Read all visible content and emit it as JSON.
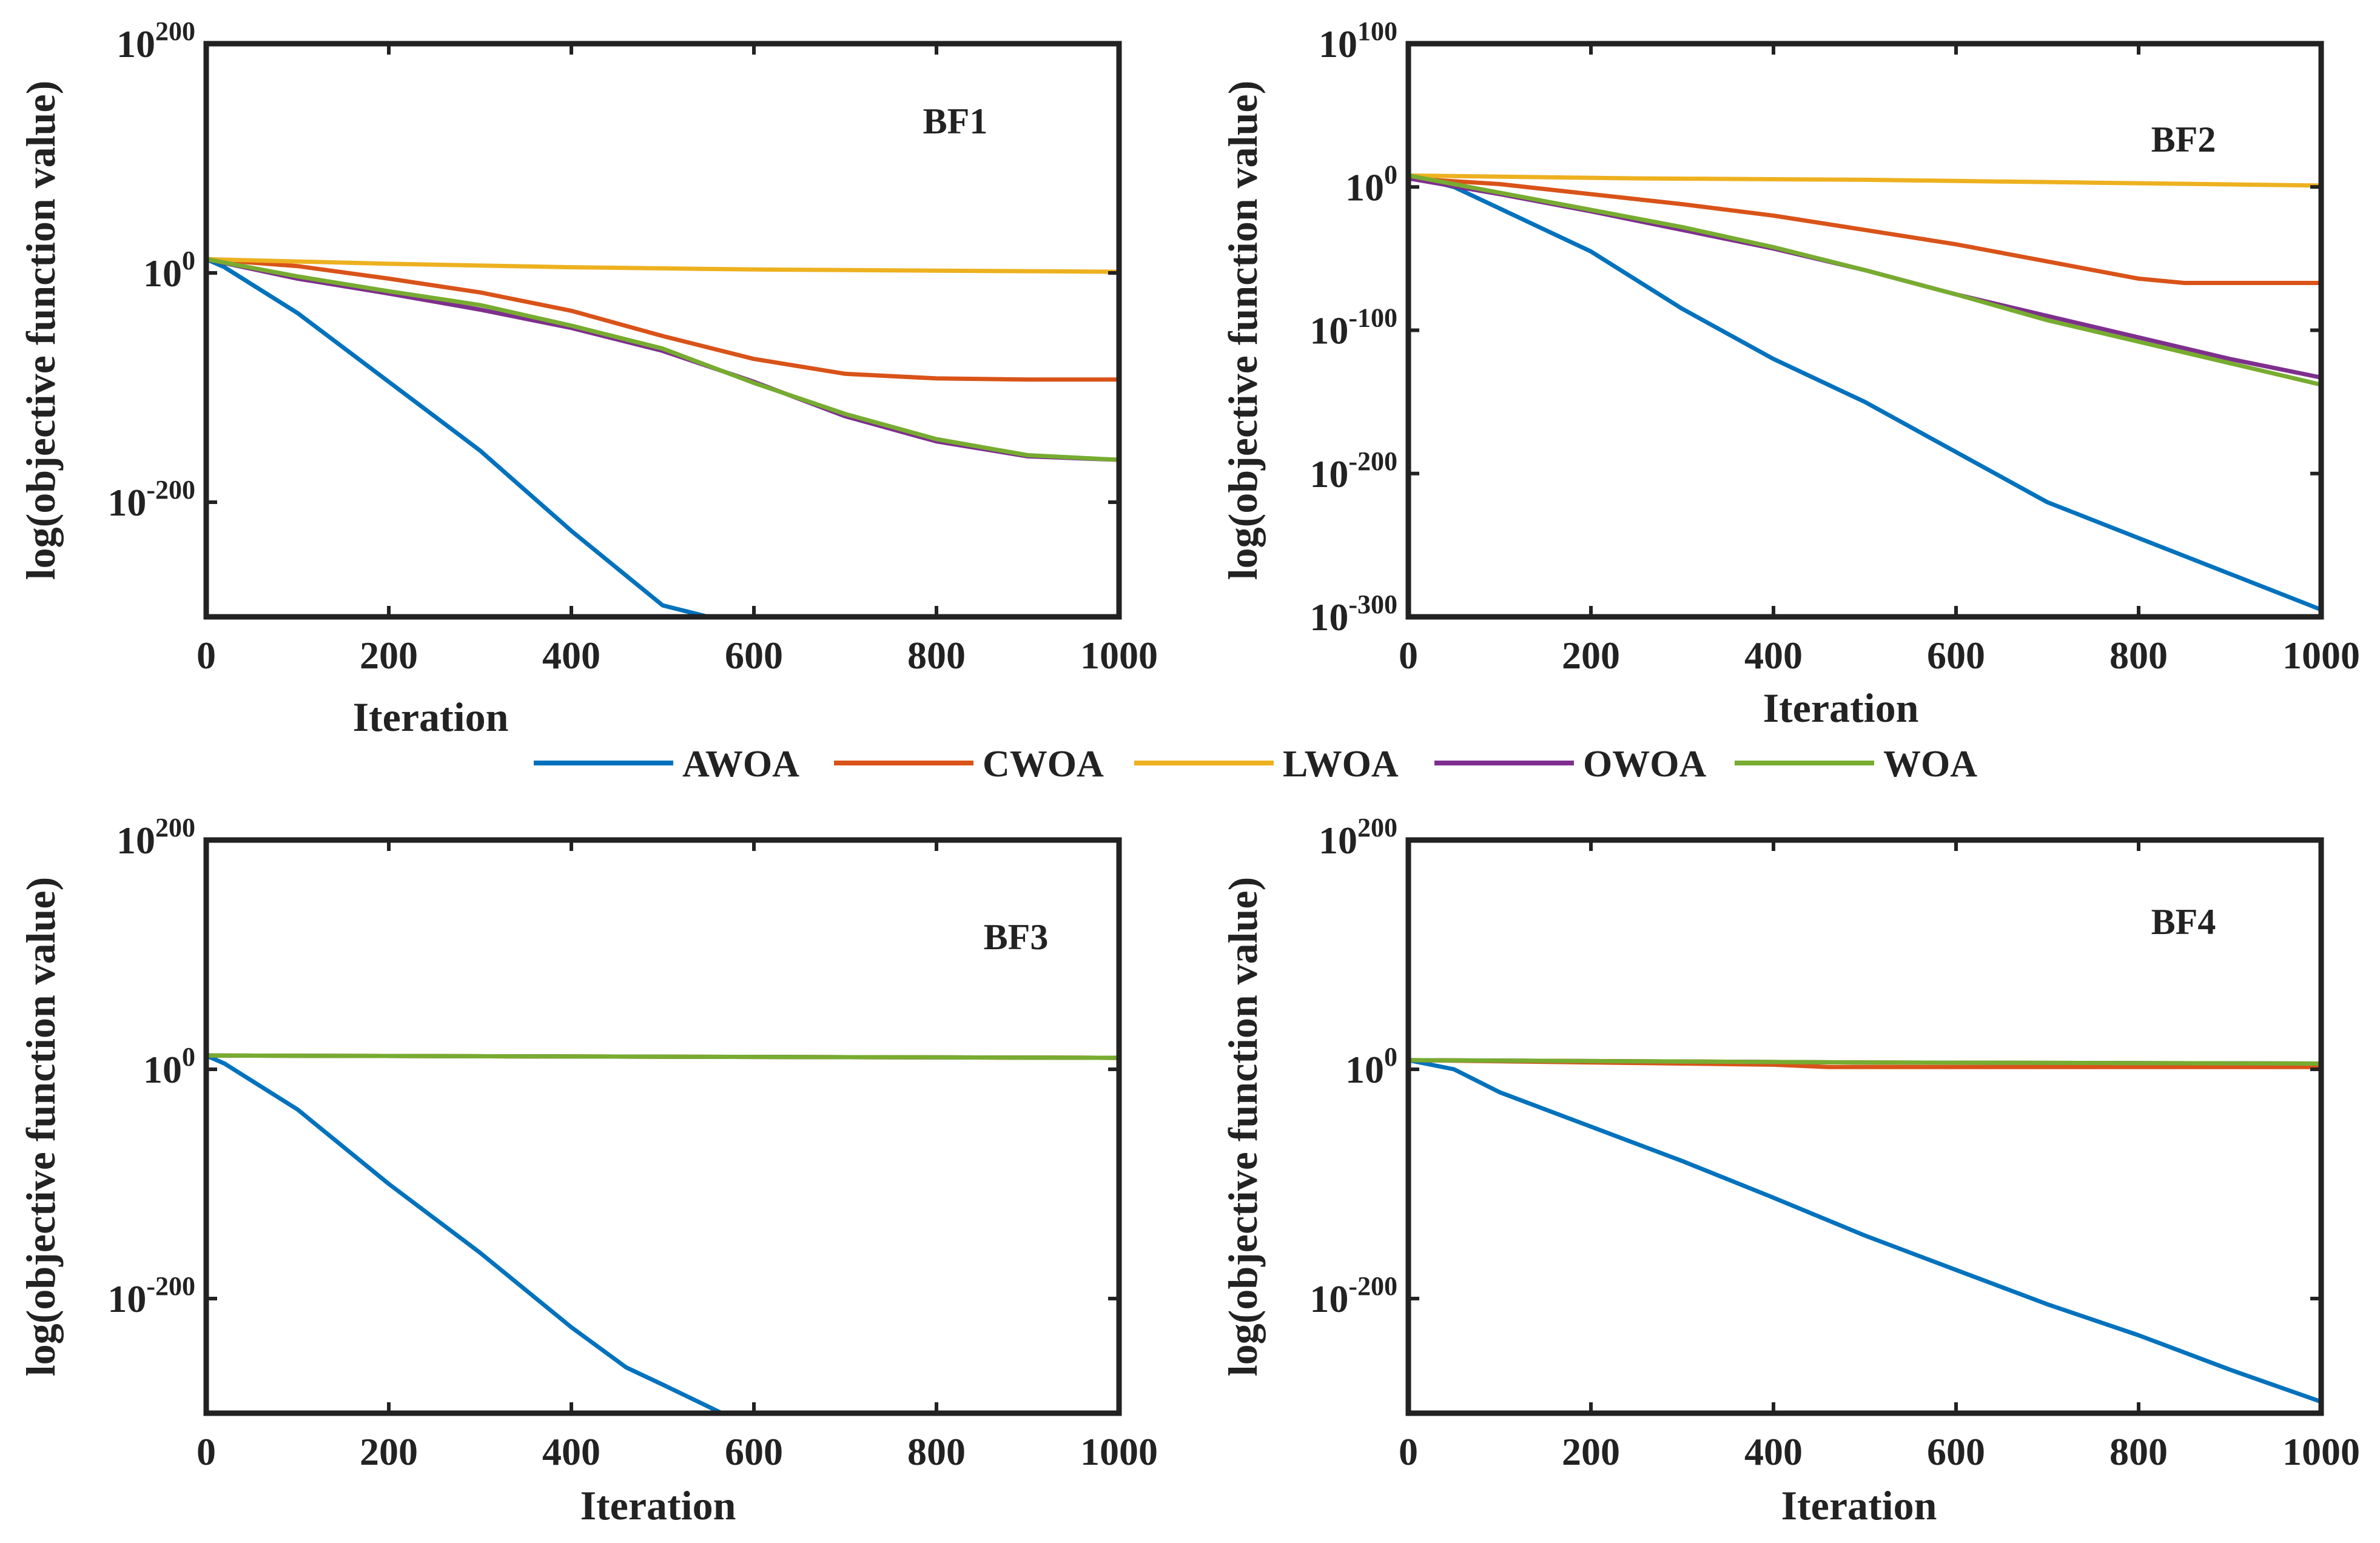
{
  "figure": {
    "legend": [
      "AWOA",
      "CWOA",
      "LWOA",
      "OWOA",
      "WOA"
    ],
    "colors": {
      "AWOA": "#0072BD",
      "CWOA": "#D95319",
      "LWOA": "#EDB120",
      "OWOA": "#7E2F8E",
      "WOA": "#77AC30",
      "axis": "#222222"
    }
  },
  "chart_data": [
    {
      "id": "BF1",
      "type": "line",
      "title": "BF1",
      "xlabel": "Iteration",
      "ylabel": "log(objective function value)",
      "yscale": "log",
      "xlim": [
        0,
        1000
      ],
      "ylim_exp": [
        -300,
        200
      ],
      "xticks": [
        "0",
        "200",
        "400",
        "600",
        "800",
        "1000"
      ],
      "yticks": [
        {
          "base": "10",
          "exp": "200"
        },
        {
          "base": "10",
          "exp": "0"
        },
        {
          "base": "10",
          "exp": "-200"
        }
      ],
      "yticks_exp": [
        200,
        0,
        -200
      ],
      "series": [
        {
          "name": "AWOA",
          "x": [
            0,
            20,
            100,
            200,
            300,
            400,
            500,
            550
          ],
          "log10_y": [
            12,
            5,
            -35,
            -95,
            -155,
            -225,
            -290,
            -300
          ]
        },
        {
          "name": "CWOA",
          "x": [
            0,
            100,
            200,
            300,
            400,
            500,
            600,
            700,
            800,
            900,
            1000
          ],
          "log10_y": [
            12,
            6,
            -5,
            -17,
            -33,
            -55,
            -75,
            -88,
            -92,
            -93,
            -93
          ]
        },
        {
          "name": "LWOA",
          "x": [
            0,
            200,
            400,
            600,
            800,
            1000
          ],
          "log10_y": [
            12,
            8,
            5,
            3,
            2,
            1
          ]
        },
        {
          "name": "OWOA",
          "x": [
            0,
            100,
            200,
            300,
            400,
            500,
            600,
            700,
            800,
            900,
            1000
          ],
          "log10_y": [
            12,
            -5,
            -18,
            -32,
            -48,
            -68,
            -95,
            -125,
            -147,
            -160,
            -163
          ]
        },
        {
          "name": "WOA",
          "x": [
            0,
            100,
            200,
            300,
            400,
            500,
            600,
            700,
            800,
            900,
            1000
          ],
          "log10_y": [
            12,
            -3,
            -16,
            -28,
            -46,
            -66,
            -96,
            -123,
            -145,
            -159,
            -163
          ]
        }
      ]
    },
    {
      "id": "BF2",
      "type": "line",
      "title": "BF2",
      "xlabel": "Iteration",
      "ylabel": "log(objective function value)",
      "yscale": "log",
      "xlim": [
        0,
        1000
      ],
      "ylim_exp": [
        -300,
        100
      ],
      "xticks": [
        "0",
        "200",
        "400",
        "600",
        "800",
        "1000"
      ],
      "yticks": [
        {
          "base": "10",
          "exp": "100"
        },
        {
          "base": "10",
          "exp": "0"
        },
        {
          "base": "10",
          "exp": "-100"
        },
        {
          "base": "10",
          "exp": "-200"
        },
        {
          "base": "10",
          "exp": "-300"
        }
      ],
      "yticks_exp": [
        100,
        0,
        -100,
        -200,
        -300
      ],
      "series": [
        {
          "name": "AWOA",
          "x": [
            0,
            50,
            100,
            200,
            300,
            400,
            500,
            600,
            700,
            800,
            900,
            1000
          ],
          "log10_y": [
            8,
            0,
            -15,
            -45,
            -85,
            -120,
            -150,
            -185,
            -220,
            -245,
            -270,
            -295
          ]
        },
        {
          "name": "CWOA",
          "x": [
            0,
            100,
            200,
            300,
            400,
            500,
            600,
            700,
            800,
            850,
            900,
            1000
          ],
          "log10_y": [
            6,
            2,
            -5,
            -12,
            -20,
            -30,
            -40,
            -52,
            -64,
            -67,
            -67,
            -67
          ]
        },
        {
          "name": "LWOA",
          "x": [
            0,
            250,
            500,
            750,
            1000
          ],
          "log10_y": [
            8,
            6,
            5,
            3,
            1
          ]
        },
        {
          "name": "OWOA",
          "x": [
            0,
            100,
            200,
            300,
            400,
            500,
            600,
            700,
            800,
            900,
            1000
          ],
          "log10_y": [
            6,
            -5,
            -17,
            -30,
            -43,
            -58,
            -75,
            -90,
            -105,
            -120,
            -133
          ]
        },
        {
          "name": "WOA",
          "x": [
            0,
            100,
            200,
            300,
            400,
            500,
            600,
            700,
            800,
            900,
            1000
          ],
          "log10_y": [
            8,
            -4,
            -16,
            -28,
            -42,
            -58,
            -75,
            -93,
            -108,
            -123,
            -138
          ]
        }
      ]
    },
    {
      "id": "BF3",
      "type": "line",
      "title": "BF3",
      "xlabel": "Iteration",
      "ylabel": "log(objective function value)",
      "yscale": "log",
      "xlim": [
        0,
        1000
      ],
      "ylim_exp": [
        -300,
        200
      ],
      "xticks": [
        "0",
        "200",
        "400",
        "600",
        "800",
        "1000"
      ],
      "yticks": [
        {
          "base": "10",
          "exp": "200"
        },
        {
          "base": "10",
          "exp": "0"
        },
        {
          "base": "10",
          "exp": "-200"
        }
      ],
      "yticks_exp": [
        200,
        0,
        -200
      ],
      "series": [
        {
          "name": "AWOA",
          "x": [
            0,
            20,
            100,
            200,
            300,
            400,
            460,
            500,
            565
          ],
          "log10_y": [
            12,
            5,
            -35,
            -100,
            -160,
            -225,
            -260,
            -275,
            -300
          ]
        },
        {
          "name": "CWOA",
          "x": [
            0,
            500,
            1000
          ],
          "log10_y": [
            12,
            11,
            10
          ]
        },
        {
          "name": "LWOA",
          "x": [
            0,
            500,
            1000
          ],
          "log10_y": [
            12,
            11,
            10
          ]
        },
        {
          "name": "OWOA",
          "x": [
            0,
            500,
            1000
          ],
          "log10_y": [
            12,
            11,
            10
          ]
        },
        {
          "name": "WOA",
          "x": [
            0,
            500,
            1000
          ],
          "log10_y": [
            12,
            11,
            10
          ]
        }
      ]
    },
    {
      "id": "BF4",
      "type": "line",
      "title": "BF4",
      "xlabel": "Iteration",
      "ylabel": "log(objective function value)",
      "yscale": "log",
      "xlim": [
        0,
        1000
      ],
      "ylim_exp": [
        -300,
        200
      ],
      "xticks": [
        "0",
        "200",
        "400",
        "600",
        "800",
        "1000"
      ],
      "yticks": [
        {
          "base": "10",
          "exp": "200"
        },
        {
          "base": "10",
          "exp": "0"
        },
        {
          "base": "10",
          "exp": "-200"
        }
      ],
      "yticks_exp": [
        200,
        0,
        -200
      ],
      "series": [
        {
          "name": "AWOA",
          "x": [
            0,
            50,
            100,
            200,
            300,
            400,
            500,
            600,
            700,
            800,
            900,
            1000
          ],
          "log10_y": [
            8,
            0,
            -20,
            -50,
            -80,
            -112,
            -145,
            -175,
            -205,
            -232,
            -262,
            -290
          ]
        },
        {
          "name": "CWOA",
          "x": [
            0,
            400,
            460,
            1000
          ],
          "log10_y": [
            8,
            4,
            2,
            2
          ]
        },
        {
          "name": "LWOA",
          "x": [
            0,
            500,
            1000
          ],
          "log10_y": [
            8,
            6,
            5
          ]
        },
        {
          "name": "OWOA",
          "x": [
            0,
            500,
            1000
          ],
          "log10_y": [
            8,
            6,
            5
          ]
        },
        {
          "name": "WOA",
          "x": [
            0,
            500,
            1000
          ],
          "log10_y": [
            8,
            6,
            5
          ]
        }
      ]
    }
  ]
}
